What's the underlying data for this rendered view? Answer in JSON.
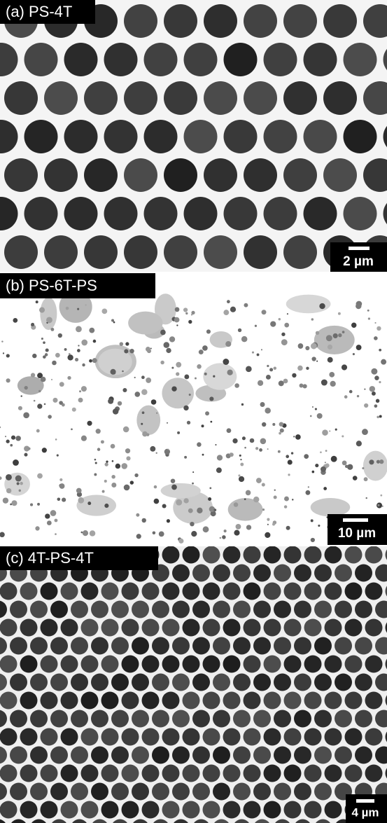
{
  "panels": [
    {
      "label": "(a) PS-4T",
      "scale": "2 µm"
    },
    {
      "label": "(b) PS-6T-PS",
      "scale": "10 µm"
    },
    {
      "label": "(c) 4T-PS-4T",
      "scale": "4 µm"
    }
  ]
}
